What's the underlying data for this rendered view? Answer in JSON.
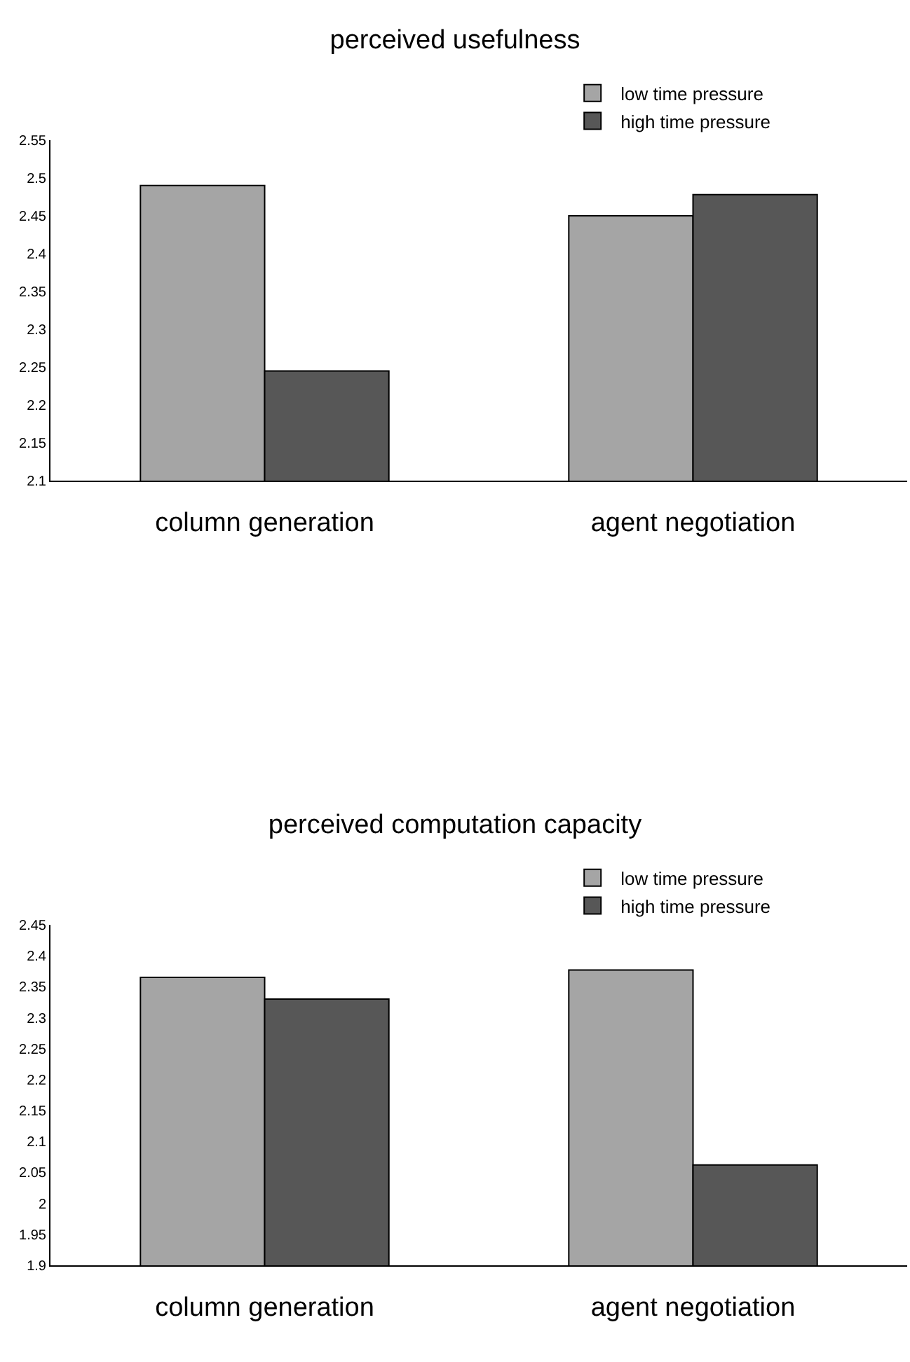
{
  "chart_data": [
    {
      "type": "bar",
      "title": "perceived usefulness",
      "categories": [
        "column generation",
        "agent negotiation"
      ],
      "series": [
        {
          "name": "low time pressure",
          "color": "#a5a5a5",
          "values": [
            2.49,
            2.45
          ]
        },
        {
          "name": "high time pressure",
          "color": "#575757",
          "values": [
            2.245,
            2.478
          ]
        }
      ],
      "ylim": [
        2.1,
        2.55
      ],
      "yticks": [
        2.1,
        2.15,
        2.2,
        2.25,
        2.3,
        2.35,
        2.4,
        2.45,
        2.5,
        2.55
      ],
      "grid": false,
      "legend": "top right"
    },
    {
      "type": "bar",
      "title": "perceived computation capacity",
      "categories": [
        "column generation",
        "agent negotiation"
      ],
      "series": [
        {
          "name": "low time pressure",
          "color": "#a5a5a5",
          "values": [
            2.365,
            2.377
          ]
        },
        {
          "name": "high time pressure",
          "color": "#575757",
          "values": [
            2.33,
            2.062
          ]
        }
      ],
      "ylim": [
        1.9,
        2.45
      ],
      "yticks": [
        1.9,
        1.95,
        2,
        2.05,
        2.1,
        2.15,
        2.2,
        2.25,
        2.3,
        2.35,
        2.4,
        2.45
      ],
      "grid": false,
      "legend": "top right"
    }
  ]
}
